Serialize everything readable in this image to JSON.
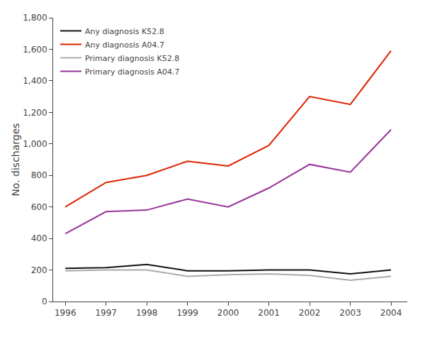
{
  "chart_data": {
    "type": "line",
    "x": [
      1996,
      1997,
      1998,
      1999,
      2000,
      2001,
      2002,
      2003,
      2004
    ],
    "series": [
      {
        "name": "Any diagnosis K52.8",
        "color": "#111111",
        "values": [
          210,
          215,
          235,
          195,
          195,
          200,
          200,
          175,
          200
        ]
      },
      {
        "name": "Any diagnosis A04.7",
        "color": "#dd2200",
        "values": [
          600,
          755,
          800,
          890,
          860,
          990,
          1300,
          1250,
          1590
        ]
      },
      {
        "name": "Primary diagnosis K52.8",
        "color": "#aaaaaa",
        "values": [
          195,
          200,
          200,
          160,
          170,
          175,
          165,
          135,
          160
        ]
      },
      {
        "name": "Primary diagnosis A04.7",
        "color": "#993399",
        "values": [
          430,
          570,
          580,
          650,
          600,
          720,
          870,
          820,
          1090
        ]
      }
    ],
    "ylabel": "No. discharges",
    "xlim": [
      1995.7,
      2004.4
    ],
    "xticks": [
      1996,
      1997,
      1998,
      1999,
      2000,
      2001,
      2002,
      2003,
      2004
    ],
    "ylim": [
      0,
      1800
    ],
    "yticks": [
      0,
      200,
      400,
      600,
      800,
      {
        "value": 1000,
        "label": "1,000"
      },
      {
        "value": 1200,
        "label": "1,200"
      },
      {
        "value": 1400,
        "label": "1,400"
      },
      {
        "value": 1600,
        "label": "1,600"
      },
      {
        "value": 1800,
        "label": "1,800"
      }
    ],
    "grid": false,
    "legend": "upper left"
  }
}
